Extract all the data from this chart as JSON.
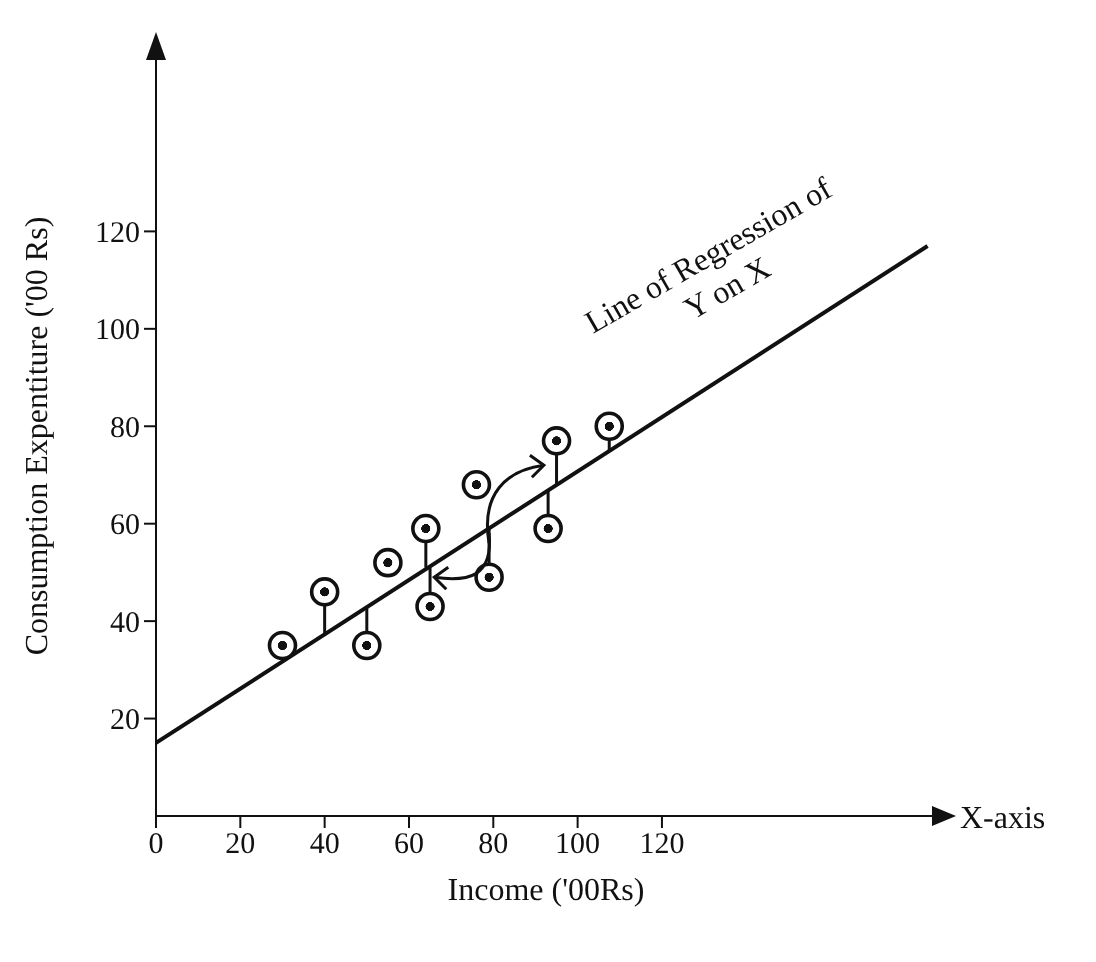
{
  "chart_data": {
    "type": "scatter",
    "xlabel": "Income ('00Rs)",
    "ylabel": "Consumption Expentiture ('00 Rs)",
    "xlim": [
      0,
      185
    ],
    "ylim": [
      0,
      156
    ],
    "xticks": [
      0,
      20,
      40,
      60,
      80,
      100,
      120
    ],
    "yticks": [
      20,
      40,
      60,
      80,
      100,
      120
    ],
    "line_style": "solid",
    "grid": false,
    "series": [
      {
        "marker": "circle",
        "color": "#111111",
        "x": [
          30,
          40,
          50,
          55,
          64,
          65,
          76,
          79,
          95,
          93,
          107.5
        ],
        "values": [
          35,
          46,
          35,
          52,
          59,
          43,
          68,
          49,
          77,
          59,
          80
        ],
        "errors": [
          null,
          [
            37,
            46
          ],
          [
            35,
            43
          ],
          null,
          [
            51,
            59
          ],
          [
            43,
            51
          ],
          null,
          [
            49,
            59
          ],
          [
            68,
            77
          ],
          [
            59,
            67
          ],
          [
            75,
            80
          ]
        ]
      },
      {
        "type": "line",
        "name": "Line of Regression of Y on X",
        "color": "#111111",
        "x": [
          0,
          183
        ],
        "values": [
          15,
          117
        ]
      }
    ],
    "annotations": [
      "X-axis"
    ]
  }
}
